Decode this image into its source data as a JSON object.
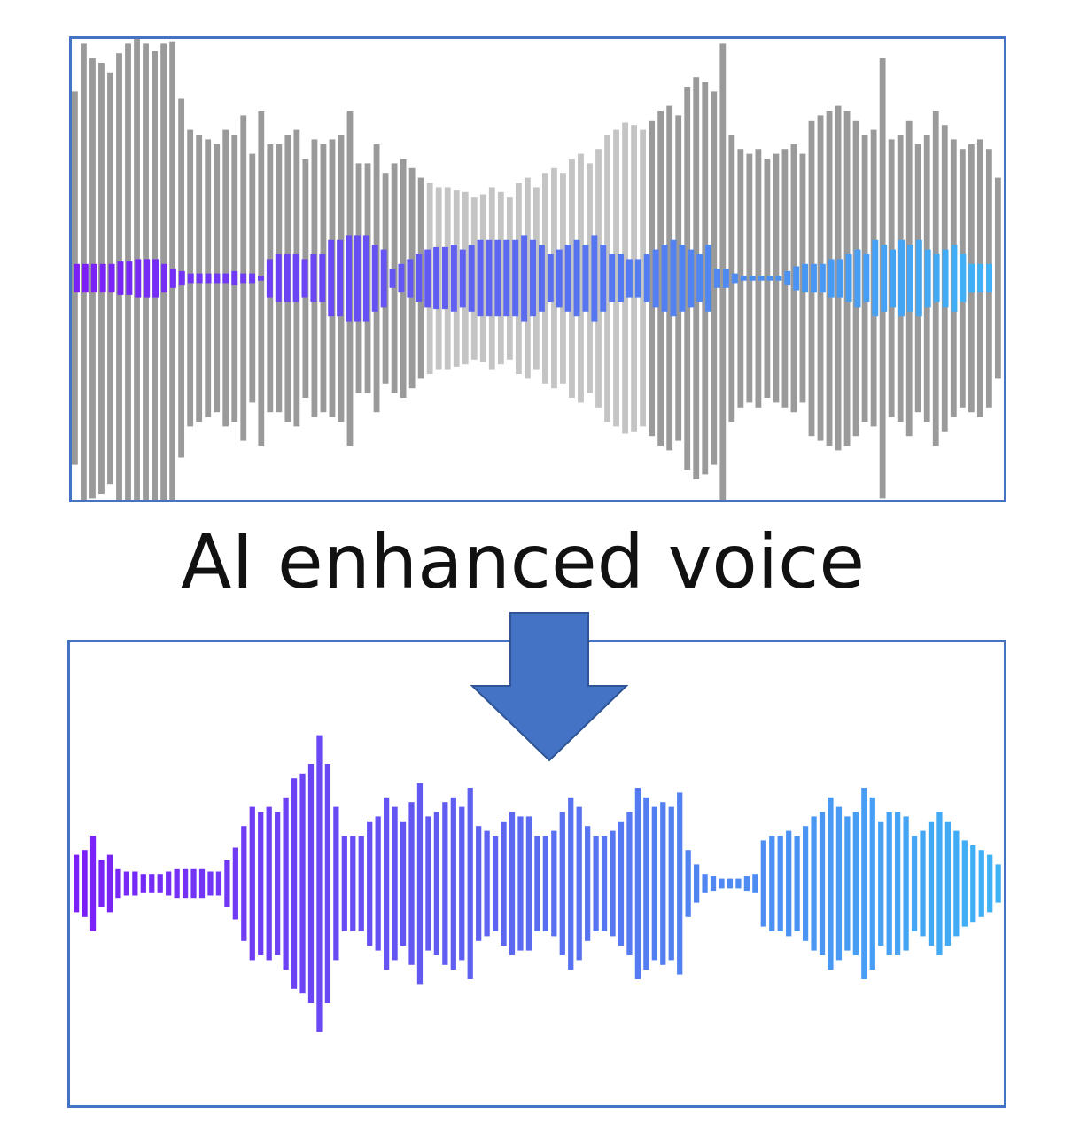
{
  "caption": "AI enhanced voice",
  "colors": {
    "frame": "#4472c4",
    "arrow": "#4472c4",
    "noise_dark": "#9a9a9a",
    "noise_light": "#c4c4c4",
    "voice_start": "#7b1ff7",
    "voice_mid": "#5a6cf0",
    "voice_end": "#3fb2f5"
  },
  "icons": {
    "arrow": "down-arrow-icon"
  },
  "waveforms": {
    "noisy_noise": [
      0.78,
      0.98,
      0.92,
      0.9,
      0.86,
      0.94,
      0.98,
      1.0,
      0.98,
      0.95,
      0.98,
      0.99,
      0.75,
      0.62,
      0.6,
      0.58,
      0.56,
      0.62,
      0.6,
      0.68,
      0.52,
      0.7,
      0.56,
      0.56,
      0.6,
      0.62,
      0.5,
      0.58,
      0.56,
      0.58,
      0.6,
      0.7,
      0.48,
      0.48,
      0.56,
      0.44,
      0.48,
      0.5,
      0.46,
      0.42,
      0.4,
      0.38,
      0.38,
      0.37,
      0.36,
      0.34,
      0.35,
      0.38,
      0.36,
      0.34,
      0.4,
      0.42,
      0.38,
      0.44,
      0.46,
      0.44,
      0.5,
      0.52,
      0.48,
      0.54,
      0.6,
      0.62,
      0.65,
      0.64,
      0.62,
      0.66,
      0.7,
      0.72,
      0.68,
      0.8,
      0.84,
      0.82,
      0.78,
      0.98,
      0.6,
      0.54,
      0.52,
      0.54,
      0.5,
      0.52,
      0.54,
      0.56,
      0.52,
      0.66,
      0.68,
      0.7,
      0.72,
      0.7,
      0.66,
      0.6,
      0.62,
      0.92,
      0.58,
      0.6,
      0.66,
      0.56,
      0.6,
      0.7,
      0.64,
      0.58,
      0.54,
      0.56,
      0.58,
      0.54,
      0.42
    ],
    "noisy_voice": [
      0.06,
      0.06,
      0.06,
      0.06,
      0.06,
      0.07,
      0.07,
      0.08,
      0.08,
      0.08,
      0.06,
      0.04,
      0.03,
      0.02,
      0.02,
      0.02,
      0.02,
      0.02,
      0.03,
      0.02,
      0.02,
      0.01,
      0.08,
      0.1,
      0.1,
      0.1,
      0.08,
      0.1,
      0.1,
      0.16,
      0.16,
      0.18,
      0.18,
      0.18,
      0.14,
      0.12,
      0.04,
      0.06,
      0.08,
      0.1,
      0.12,
      0.13,
      0.13,
      0.14,
      0.12,
      0.14,
      0.16,
      0.16,
      0.16,
      0.16,
      0.16,
      0.18,
      0.16,
      0.14,
      0.1,
      0.12,
      0.14,
      0.16,
      0.14,
      0.18,
      0.14,
      0.1,
      0.1,
      0.08,
      0.08,
      0.1,
      0.12,
      0.14,
      0.16,
      0.14,
      0.12,
      0.1,
      0.14,
      0.04,
      0.04,
      0.02,
      0.01,
      0.01,
      0.01,
      0.01,
      0.01,
      0.03,
      0.05,
      0.06,
      0.06,
      0.06,
      0.08,
      0.08,
      0.1,
      0.12,
      0.1,
      0.16,
      0.14,
      0.12,
      0.16,
      0.14,
      0.16,
      0.12,
      0.1,
      0.12,
      0.14,
      0.1,
      0.06,
      0.06,
      0.06
    ],
    "enhanced_voice": [
      0.12,
      0.14,
      0.2,
      0.1,
      0.12,
      0.06,
      0.05,
      0.05,
      0.04,
      0.04,
      0.04,
      0.05,
      0.06,
      0.06,
      0.06,
      0.06,
      0.05,
      0.05,
      0.1,
      0.15,
      0.24,
      0.32,
      0.3,
      0.32,
      0.3,
      0.36,
      0.44,
      0.46,
      0.5,
      0.62,
      0.5,
      0.32,
      0.2,
      0.2,
      0.2,
      0.26,
      0.28,
      0.36,
      0.32,
      0.26,
      0.34,
      0.42,
      0.28,
      0.3,
      0.34,
      0.36,
      0.32,
      0.4,
      0.24,
      0.22,
      0.2,
      0.26,
      0.3,
      0.28,
      0.28,
      0.2,
      0.2,
      0.22,
      0.3,
      0.36,
      0.32,
      0.24,
      0.2,
      0.2,
      0.22,
      0.26,
      0.3,
      0.4,
      0.36,
      0.32,
      0.34,
      0.32,
      0.38,
      0.14,
      0.08,
      0.04,
      0.03,
      0.02,
      0.02,
      0.02,
      0.03,
      0.04,
      0.18,
      0.2,
      0.2,
      0.22,
      0.2,
      0.24,
      0.28,
      0.3,
      0.36,
      0.32,
      0.28,
      0.3,
      0.4,
      0.36,
      0.26,
      0.3,
      0.3,
      0.28,
      0.2,
      0.22,
      0.26,
      0.3,
      0.26,
      0.22,
      0.18,
      0.16,
      0.14,
      0.12,
      0.08
    ]
  }
}
